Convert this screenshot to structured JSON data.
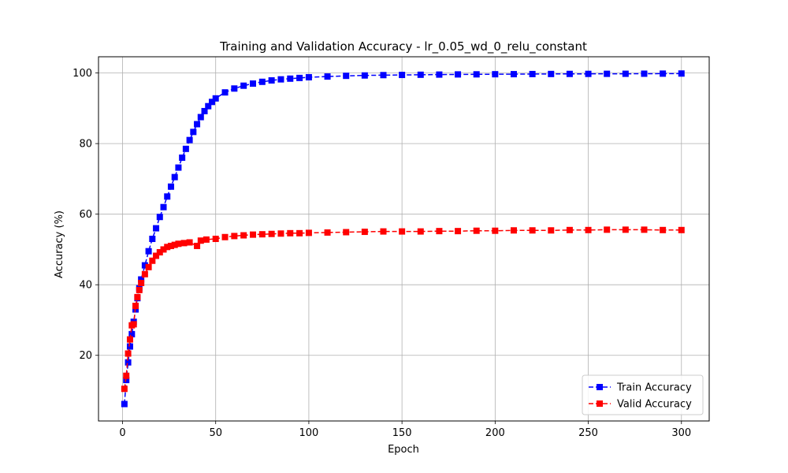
{
  "chart_data": {
    "type": "line",
    "title": "Training and Validation Accuracy - lr_0.05_wd_0_relu_constant",
    "xlabel": "Epoch",
    "ylabel": "Accuracy (%)",
    "xlim": [
      -12.9,
      314.9
    ],
    "ylim": [
      1.4,
      104.6
    ],
    "xticks": [
      0,
      50,
      100,
      150,
      200,
      250,
      300
    ],
    "yticks": [
      20,
      40,
      60,
      80,
      100
    ],
    "grid": true,
    "legend_position": "bottom-right",
    "series": [
      {
        "name": "Train Accuracy",
        "color": "#0000ff",
        "marker": "square",
        "linestyle": "dashed",
        "x": [
          1,
          2,
          3,
          4,
          5,
          6,
          7,
          8,
          9,
          10,
          12,
          14,
          16,
          18,
          20,
          22,
          24,
          26,
          28,
          30,
          32,
          34,
          36,
          38,
          40,
          42,
          44,
          46,
          48,
          50,
          55,
          60,
          65,
          70,
          75,
          80,
          85,
          90,
          95,
          100,
          110,
          120,
          130,
          140,
          150,
          160,
          170,
          180,
          190,
          200,
          210,
          220,
          230,
          240,
          250,
          260,
          270,
          280,
          290,
          300
        ],
        "values": [
          6.2,
          13.0,
          18.0,
          22.5,
          26.0,
          29.5,
          33.0,
          36.2,
          39.0,
          41.5,
          45.5,
          49.5,
          53.0,
          56.0,
          59.2,
          62.0,
          65.0,
          67.8,
          70.5,
          73.2,
          76.0,
          78.5,
          81.0,
          83.3,
          85.5,
          87.5,
          89.2,
          90.6,
          91.8,
          92.8,
          94.5,
          95.6,
          96.4,
          97.0,
          97.5,
          97.9,
          98.2,
          98.4,
          98.6,
          98.8,
          99.0,
          99.2,
          99.3,
          99.4,
          99.45,
          99.5,
          99.55,
          99.6,
          99.62,
          99.65,
          99.67,
          99.7,
          99.72,
          99.74,
          99.75,
          99.77,
          99.78,
          99.8,
          99.82,
          99.85
        ]
      },
      {
        "name": "Valid Accuracy",
        "color": "#ff0000",
        "marker": "square",
        "linestyle": "dashed",
        "x": [
          1,
          2,
          3,
          4,
          5,
          6,
          7,
          8,
          9,
          10,
          12,
          14,
          16,
          18,
          20,
          22,
          24,
          26,
          28,
          30,
          33,
          36,
          40,
          42,
          45,
          50,
          55,
          60,
          65,
          70,
          75,
          80,
          85,
          90,
          95,
          100,
          110,
          120,
          130,
          140,
          150,
          160,
          170,
          180,
          190,
          200,
          210,
          220,
          230,
          240,
          250,
          260,
          270,
          280,
          290,
          300
        ],
        "values": [
          10.5,
          14.2,
          20.5,
          24.5,
          28.5,
          28.8,
          34.0,
          36.5,
          38.5,
          40.5,
          43.0,
          45.0,
          46.8,
          48.2,
          49.2,
          50.0,
          50.7,
          51.0,
          51.3,
          51.6,
          51.8,
          52.0,
          51.0,
          52.5,
          52.8,
          53.0,
          53.5,
          53.8,
          54.0,
          54.2,
          54.3,
          54.4,
          54.5,
          54.6,
          54.6,
          54.7,
          54.8,
          54.9,
          55.0,
          55.1,
          55.1,
          55.1,
          55.2,
          55.2,
          55.3,
          55.3,
          55.4,
          55.4,
          55.4,
          55.5,
          55.5,
          55.6,
          55.6,
          55.6,
          55.5,
          55.5
        ]
      }
    ]
  }
}
